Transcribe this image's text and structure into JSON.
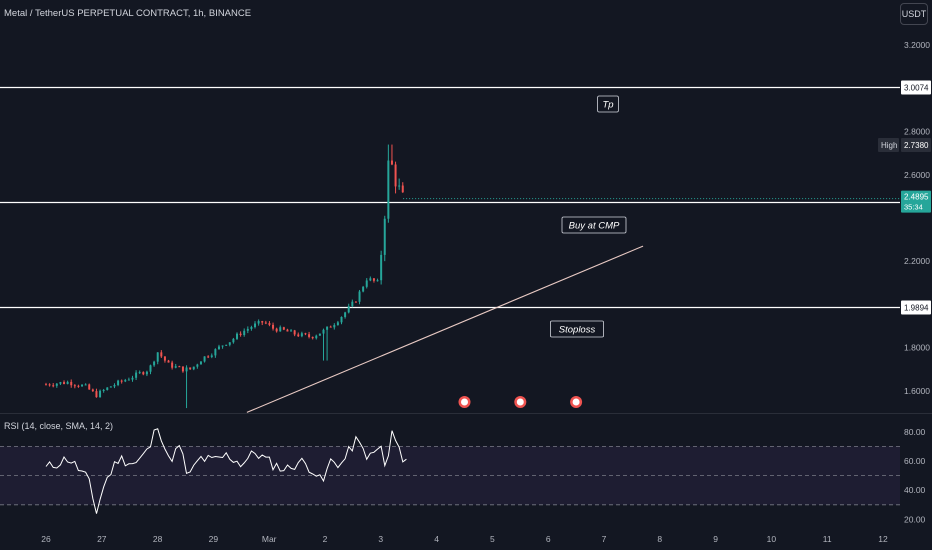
{
  "header": {
    "symbol_title": "Metal / TetherUS PERPETUAL CONTRACT, 1h, BINANCE",
    "currency_button": "USDT"
  },
  "rsi_panel": {
    "title": "RSI (14, close, SMA, 14, 2)"
  },
  "colors": {
    "background": "#131722",
    "up_candle": "#26a69a",
    "down_candle": "#ef5350",
    "horizontal_lines": "#ffffff",
    "trendline": "#e8c9c3",
    "rsi_line": "#ffffff",
    "rsi_band": "#7e57c2",
    "last_price_badge": "#26a69a"
  },
  "chart_data": [
    {
      "type": "candlestick",
      "title": "Metal / TetherUS PERPETUAL CONTRACT, 1h, BINANCE",
      "x_ticks": [
        "26",
        "27",
        "28",
        "29",
        "Mar",
        "2",
        "3",
        "4",
        "5",
        "6",
        "7",
        "8",
        "9",
        "10",
        "11",
        "12"
      ],
      "y_ticks": [
        "3.2000",
        "2.8000",
        "2.6000",
        "2.2000",
        "1.8000",
        "1.6000"
      ],
      "ylim": [
        1.5,
        3.3
      ],
      "close_path": [
        {
          "x": 0,
          "y": 1.63
        },
        {
          "x": 0.4,
          "y": 1.64
        },
        {
          "x": 0.7,
          "y": 1.62
        },
        {
          "x": 0.9,
          "y": 1.58
        },
        {
          "x": 1.15,
          "y": 1.62
        },
        {
          "x": 1.5,
          "y": 1.66
        },
        {
          "x": 1.85,
          "y": 1.7
        },
        {
          "x": 2.0,
          "y": 1.78
        },
        {
          "x": 2.2,
          "y": 1.72
        },
        {
          "x": 2.45,
          "y": 1.7
        },
        {
          "x": 2.6,
          "y": 1.7
        },
        {
          "x": 2.8,
          "y": 1.75
        },
        {
          "x": 3.0,
          "y": 1.78
        },
        {
          "x": 3.2,
          "y": 1.82
        },
        {
          "x": 3.3,
          "y": 1.83
        },
        {
          "x": 3.5,
          "y": 1.87
        },
        {
          "x": 3.7,
          "y": 1.9
        },
        {
          "x": 3.9,
          "y": 1.92
        },
        {
          "x": 4.05,
          "y": 1.89
        },
        {
          "x": 4.25,
          "y": 1.88
        },
        {
          "x": 4.5,
          "y": 1.86
        },
        {
          "x": 4.75,
          "y": 1.85
        },
        {
          "x": 5.0,
          "y": 1.88
        },
        {
          "x": 5.2,
          "y": 1.92
        },
        {
          "x": 5.35,
          "y": 1.96
        },
        {
          "x": 5.55,
          "y": 2.02
        },
        {
          "x": 5.75,
          "y": 2.12
        },
        {
          "x": 5.95,
          "y": 2.1
        },
        {
          "x": 6.05,
          "y": 2.35
        },
        {
          "x": 6.15,
          "y": 2.7
        },
        {
          "x": 6.25,
          "y": 2.58
        },
        {
          "x": 6.4,
          "y": 2.49
        }
      ],
      "current_price": "2.4895",
      "countdown": "35:34",
      "high_label": "High",
      "high_value": "2.7380",
      "horizontal_levels": [
        {
          "name": "tp-level",
          "value": 3.0074,
          "label": "3.0074",
          "note": "Tp"
        },
        {
          "name": "buy-level",
          "value": 2.4741,
          "label": "2.4741",
          "note": "Buy at CMP"
        },
        {
          "name": "stoploss-level",
          "value": 1.9894,
          "label": "1.9894",
          "note": "Stoploss"
        }
      ],
      "trendline": {
        "from": {
          "x": 3.6,
          "y": 1.5
        },
        "to": {
          "x": 10.7,
          "y": 2.27
        }
      },
      "events_at": [
        7.5,
        8.5,
        9.5
      ]
    },
    {
      "type": "line",
      "title": "RSI (14, close, SMA, 14, 2)",
      "y_ticks": [
        "80.00",
        "60.00",
        "40.00",
        "20.00"
      ],
      "ylim": [
        15,
        88
      ],
      "bands": [
        30,
        50,
        70
      ],
      "values_path": [
        {
          "x": 0,
          "y": 55
        },
        {
          "x": 0.4,
          "y": 62
        },
        {
          "x": 0.75,
          "y": 48
        },
        {
          "x": 0.9,
          "y": 25
        },
        {
          "x": 1.05,
          "y": 45
        },
        {
          "x": 1.3,
          "y": 62
        },
        {
          "x": 1.6,
          "y": 58
        },
        {
          "x": 1.85,
          "y": 68
        },
        {
          "x": 2.0,
          "y": 86
        },
        {
          "x": 2.2,
          "y": 60
        },
        {
          "x": 2.4,
          "y": 70
        },
        {
          "x": 2.55,
          "y": 48
        },
        {
          "x": 2.75,
          "y": 62
        },
        {
          "x": 3.0,
          "y": 60
        },
        {
          "x": 3.25,
          "y": 64
        },
        {
          "x": 3.5,
          "y": 58
        },
        {
          "x": 3.75,
          "y": 66
        },
        {
          "x": 4.05,
          "y": 58
        },
        {
          "x": 4.3,
          "y": 54
        },
        {
          "x": 4.55,
          "y": 60
        },
        {
          "x": 4.8,
          "y": 54
        },
        {
          "x": 4.95,
          "y": 44
        },
        {
          "x": 5.1,
          "y": 60
        },
        {
          "x": 5.3,
          "y": 58
        },
        {
          "x": 5.55,
          "y": 74
        },
        {
          "x": 5.8,
          "y": 62
        },
        {
          "x": 6.0,
          "y": 70
        },
        {
          "x": 6.1,
          "y": 52
        },
        {
          "x": 6.2,
          "y": 80
        },
        {
          "x": 6.3,
          "y": 70
        },
        {
          "x": 6.35,
          "y": 63
        },
        {
          "x": 6.5,
          "y": 62
        }
      ]
    }
  ]
}
